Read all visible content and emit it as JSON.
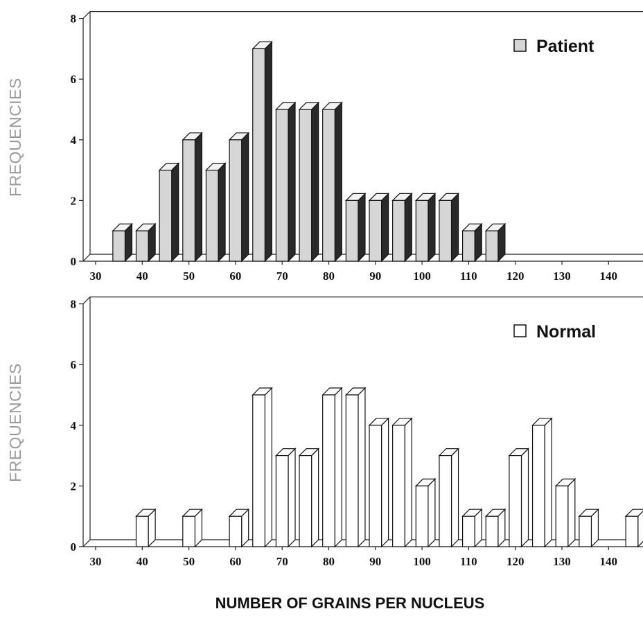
{
  "chart_data": [
    {
      "type": "bar",
      "panel": "top",
      "xlabel": "",
      "ylabel": "FREQUENCIES",
      "ylim": [
        0,
        8
      ],
      "yticks": [
        "0",
        "2",
        "4",
        "6",
        "8"
      ],
      "xlim": [
        30,
        140
      ],
      "xticks": [
        "30",
        "40",
        "50",
        "60",
        "70",
        "80",
        "90",
        "100",
        "110",
        "120",
        "130",
        "140"
      ],
      "legend": {
        "label": "Patient",
        "placement": "top-right"
      },
      "series": [
        {
          "name": "Patient",
          "color": "#d6d6d6",
          "x": [
            35,
            40,
            45,
            50,
            55,
            60,
            65,
            70,
            75,
            80,
            85,
            90,
            95,
            100,
            105,
            110,
            115
          ],
          "values": [
            1,
            1,
            3,
            4,
            3,
            4,
            7,
            5,
            5,
            5,
            2,
            2,
            2,
            2,
            2,
            1,
            1
          ]
        }
      ]
    },
    {
      "type": "bar",
      "panel": "bottom",
      "xlabel": "NUMBER OF GRAINS PER NUCLEUS",
      "ylabel": "FREQUENCIES",
      "ylim": [
        0,
        8
      ],
      "yticks": [
        "0",
        "2",
        "4",
        "6",
        "8"
      ],
      "xlim": [
        30,
        140
      ],
      "xticks": [
        "30",
        "40",
        "50",
        "60",
        "70",
        "80",
        "90",
        "100",
        "110",
        "120",
        "130",
        "140"
      ],
      "legend": {
        "label": "Normal",
        "placement": "top-right"
      },
      "series": [
        {
          "name": "Normal",
          "color": "#ffffff",
          "x": [
            40,
            50,
            60,
            65,
            70,
            75,
            80,
            85,
            90,
            95,
            100,
            105,
            110,
            115,
            120,
            125,
            130,
            135,
            145
          ],
          "values": [
            1,
            1,
            1,
            5,
            3,
            3,
            5,
            5,
            4,
            4,
            2,
            3,
            1,
            1,
            3,
            4,
            2,
            1,
            1
          ]
        }
      ]
    }
  ]
}
